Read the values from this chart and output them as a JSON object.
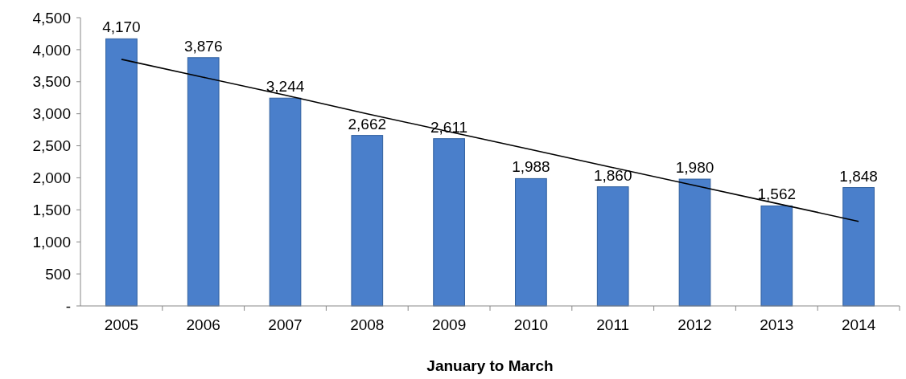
{
  "chart_data": {
    "type": "bar",
    "xlabel": "January to March",
    "categories": [
      "2005",
      "2006",
      "2007",
      "2008",
      "2009",
      "2010",
      "2011",
      "2012",
      "2013",
      "2014"
    ],
    "series": [
      {
        "color": "#4a7fcb",
        "values": [
          4170,
          3876,
          3244,
          2662,
          2611,
          1988,
          1860,
          1980,
          1562,
          1848
        ],
        "value_labels": [
          "4,170",
          "3,876",
          "3,244",
          "2,662",
          "2,611",
          "1,988",
          "1,860",
          "1,980",
          "1,562",
          "1,848"
        ]
      },
      {
        "type": "line",
        "color": "#000000",
        "values": [
          3850,
          3570,
          3290,
          3000,
          2720,
          2440,
          2160,
          1880,
          1600,
          1320
        ],
        "marker": "none"
      }
    ],
    "ylim": [
      0,
      4500
    ],
    "yticks": [
      {
        "value": 0,
        "label": "-"
      },
      {
        "value": 500,
        "label": "500"
      },
      {
        "value": 1000,
        "label": "1,000"
      },
      {
        "value": 1500,
        "label": "1,500"
      },
      {
        "value": 2000,
        "label": "2,000"
      },
      {
        "value": 2500,
        "label": "2,500"
      },
      {
        "value": 3000,
        "label": "3,000"
      },
      {
        "value": 3500,
        "label": "3,500"
      },
      {
        "value": 4000,
        "label": "4,000"
      },
      {
        "value": 4500,
        "label": "4,500"
      }
    ],
    "grid": false
  }
}
